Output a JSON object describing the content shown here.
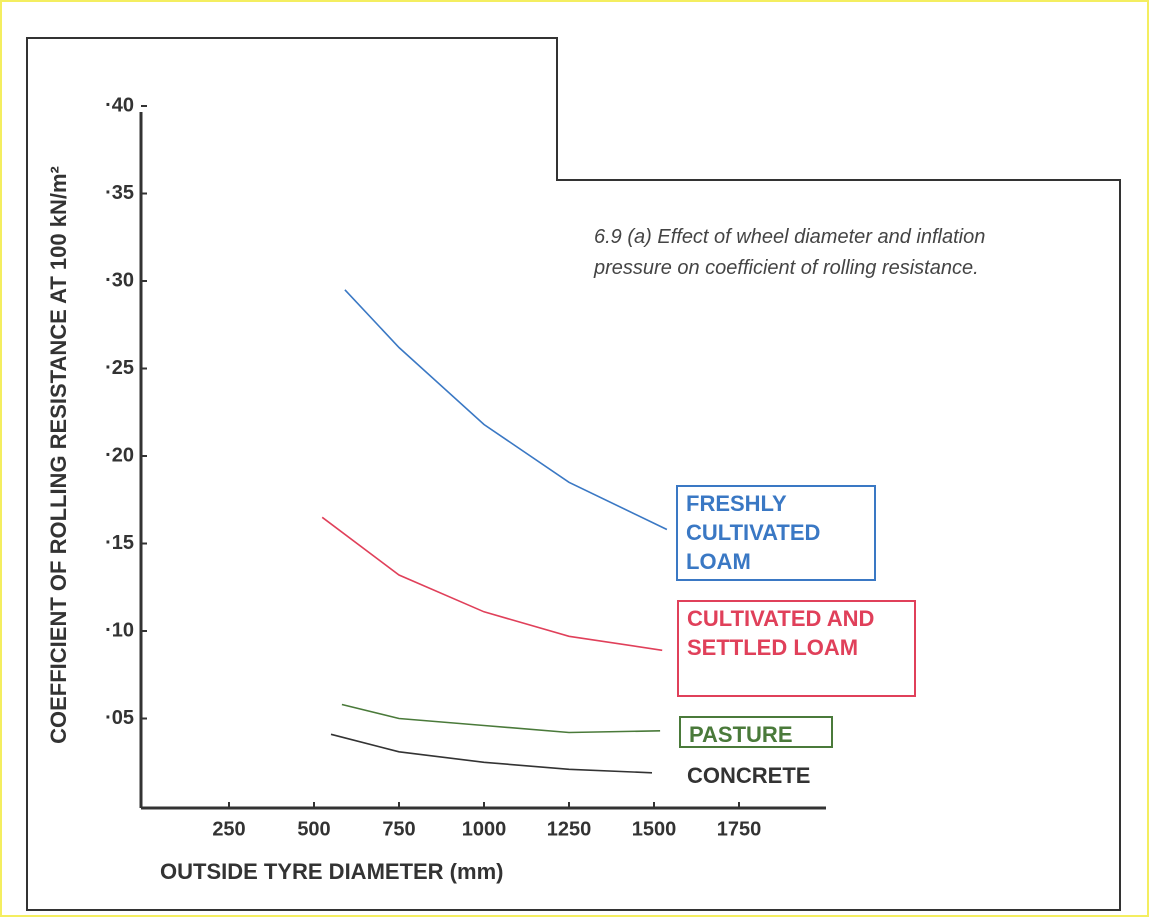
{
  "chart_data": {
    "type": "line",
    "title": "6.9 (a) Effect of wheel diameter and inflation pressure on coefficient of rolling resistance.",
    "x_label": "OUTSIDE TYRE DIAMETER (mm)",
    "y_label": "COEFFICIENT OF ROLLING RESISTANCE AT 100 kN/m²",
    "xlim": [
      0,
      2000
    ],
    "xticks": [
      250,
      500,
      750,
      1000,
      1250,
      1500,
      1750
    ],
    "ylim": [
      0,
      0.4
    ],
    "yticks": [
      {
        "value": 0.05,
        "label": "·05"
      },
      {
        "value": 0.1,
        "label": "·10"
      },
      {
        "value": 0.15,
        "label": "·15"
      },
      {
        "value": 0.2,
        "label": "·20"
      },
      {
        "value": 0.25,
        "label": "·25"
      },
      {
        "value": 0.3,
        "label": "·30"
      },
      {
        "value": 0.35,
        "label": "·35"
      },
      {
        "value": 0.4,
        "label": "·40"
      }
    ],
    "series": [
      {
        "name": "FRESHLY CULTIVATED LOAM",
        "color": "#3a78c4",
        "x": [
          591,
          750,
          1000,
          1250,
          1538
        ],
        "values": [
          0.295,
          0.262,
          0.218,
          0.185,
          0.158
        ]
      },
      {
        "name": "CULTIVATED AND SETTLED LOAM",
        "color": "#e0405a",
        "x": [
          524,
          750,
          1000,
          1250,
          1524
        ],
        "values": [
          0.165,
          0.132,
          0.111,
          0.097,
          0.089
        ]
      },
      {
        "name": "PASTURE",
        "color": "#4a7a3a",
        "x": [
          582,
          750,
          1000,
          1250,
          1518
        ],
        "values": [
          0.058,
          0.05,
          0.046,
          0.042,
          0.043
        ]
      },
      {
        "name": "CONCRETE",
        "color": "#333333",
        "x": [
          550,
          750,
          1000,
          1250,
          1494
        ],
        "values": [
          0.041,
          0.031,
          0.025,
          0.021,
          0.019
        ]
      }
    ]
  }
}
